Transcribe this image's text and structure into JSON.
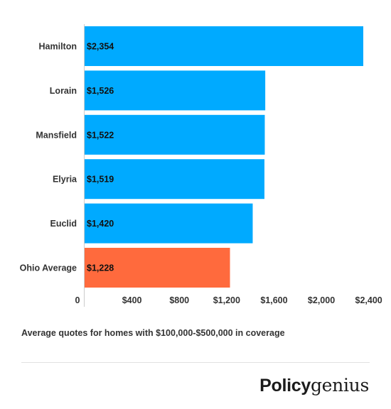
{
  "chart_data": {
    "type": "bar",
    "orientation": "horizontal",
    "categories": [
      "Hamilton",
      "Lorain",
      "Mansfield",
      "Elyria",
      "Euclid",
      "Ohio Average"
    ],
    "values": [
      2354,
      1526,
      1522,
      1519,
      1420,
      1228
    ],
    "data_labels": [
      "$2,354",
      "$1,526",
      "$1,522",
      "$1,519",
      "$1,420",
      "$1,228"
    ],
    "colors": [
      "#00aaff",
      "#00aaff",
      "#00aaff",
      "#00aaff",
      "#00aaff",
      "#ff6a3d"
    ],
    "x_ticks": [
      {
        "value": 0,
        "label": "0"
      },
      {
        "value": 400,
        "label": "$400"
      },
      {
        "value": 800,
        "label": "$800"
      },
      {
        "value": 1200,
        "label": "$1,200"
      },
      {
        "value": 1600,
        "label": "$1,600"
      },
      {
        "value": 2000,
        "label": "$2,000"
      },
      {
        "value": 2400,
        "label": "$2,400"
      }
    ],
    "xlim": [
      0,
      2360
    ],
    "grid": false,
    "title": "",
    "xlabel": "",
    "ylabel": ""
  },
  "caption": "Average quotes for homes with $100,000-$500,000 in coverage",
  "logo": {
    "bold": "Policy",
    "light": "genius"
  }
}
